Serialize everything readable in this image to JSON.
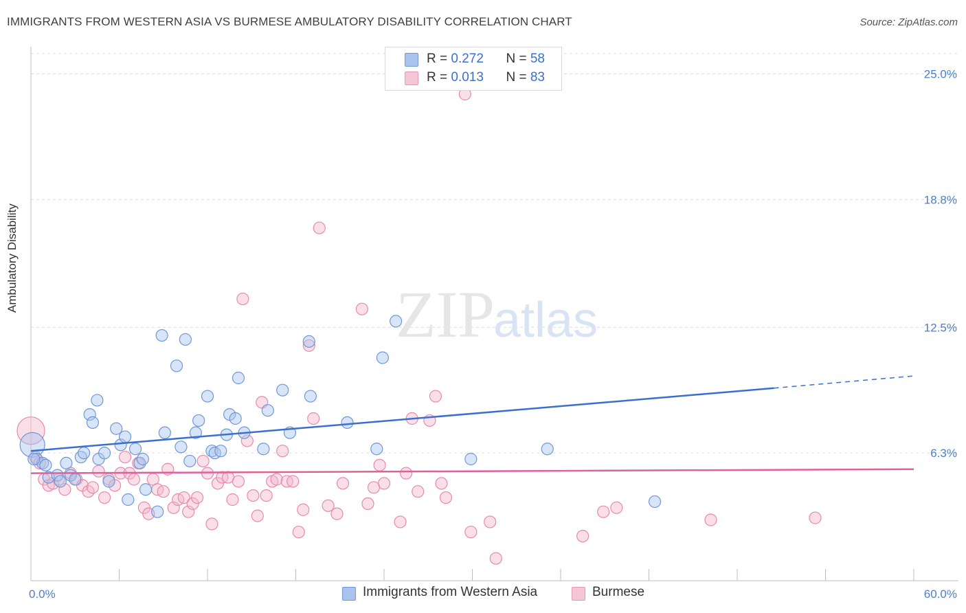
{
  "title": "IMMIGRANTS FROM WESTERN ASIA VS BURMESE AMBULATORY DISABILITY CORRELATION CHART",
  "source": "Source: ZipAtlas.com",
  "watermark": {
    "zip": "ZIP",
    "atlas": "atlas"
  },
  "legend": {
    "rows": [
      {
        "r_label": "R = ",
        "r_value": "0.272",
        "n_label": "N = ",
        "n_value": "58"
      },
      {
        "r_label": "R = ",
        "r_value": "0.013",
        "n_label": "N = ",
        "n_value": "83"
      }
    ]
  },
  "bottom_legend": [
    "Immigrants from Western Asia",
    "Burmese"
  ],
  "colors": {
    "blue": "#3a6fd0",
    "blue_fill": "#a9c4ee",
    "pink": "#e0609a",
    "pink_fill": "#f5b8cd",
    "grid": "#d9d9d9",
    "tick_text": "#4a7fcf"
  },
  "chart_data": {
    "type": "scatter",
    "title": "IMMIGRANTS FROM WESTERN ASIA VS BURMESE AMBULATORY DISABILITY CORRELATION CHART",
    "xlabel": "",
    "ylabel": "Ambulatory Disability",
    "xlim": [
      0,
      60
    ],
    "ylim": [
      0,
      26
    ],
    "x_tick_labels": [
      "0.0%",
      "60.0%"
    ],
    "y_ticks": [
      6.3,
      12.5,
      18.8,
      25.0
    ],
    "y_tick_labels": [
      "6.3%",
      "12.5%",
      "18.8%",
      "25.0%"
    ],
    "series": [
      {
        "name": "Immigrants from Western Asia",
        "color": "#3a6fd0",
        "trend": {
          "x0": 0,
          "y0": 6.4,
          "x1": 50.5,
          "y1": 9.5,
          "dash_x1": 60,
          "dash_y1": 10.1
        },
        "points": [
          [
            0.1,
            6.7
          ],
          [
            0.4,
            6.0
          ],
          [
            0.8,
            5.8
          ],
          [
            1.2,
            5.1
          ],
          [
            1.8,
            5.2
          ],
          [
            2.4,
            5.8
          ],
          [
            2.7,
            5.2
          ],
          [
            3.0,
            5.0
          ],
          [
            3.4,
            6.1
          ],
          [
            3.6,
            6.3
          ],
          [
            4.0,
            8.2
          ],
          [
            4.2,
            7.8
          ],
          [
            4.5,
            8.9
          ],
          [
            4.6,
            6.0
          ],
          [
            5.0,
            6.3
          ],
          [
            5.3,
            4.9
          ],
          [
            5.8,
            7.5
          ],
          [
            6.1,
            6.7
          ],
          [
            6.4,
            7.1
          ],
          [
            6.6,
            4.0
          ],
          [
            7.1,
            6.5
          ],
          [
            7.4,
            5.8
          ],
          [
            7.6,
            6.0
          ],
          [
            7.8,
            4.5
          ],
          [
            8.6,
            3.4
          ],
          [
            8.9,
            12.1
          ],
          [
            9.1,
            7.3
          ],
          [
            9.9,
            10.6
          ],
          [
            10.2,
            6.6
          ],
          [
            10.5,
            11.9
          ],
          [
            10.8,
            5.9
          ],
          [
            11.2,
            7.3
          ],
          [
            11.4,
            7.9
          ],
          [
            12.0,
            9.1
          ],
          [
            12.3,
            6.4
          ],
          [
            12.5,
            6.3
          ],
          [
            12.9,
            6.4
          ],
          [
            13.3,
            7.2
          ],
          [
            13.5,
            8.2
          ],
          [
            13.9,
            8.0
          ],
          [
            14.1,
            10.0
          ],
          [
            14.5,
            7.3
          ],
          [
            15.8,
            6.5
          ],
          [
            16.1,
            8.4
          ],
          [
            17.1,
            9.4
          ],
          [
            17.6,
            7.3
          ],
          [
            18.9,
            11.8
          ],
          [
            19.0,
            9.1
          ],
          [
            21.5,
            7.8
          ],
          [
            23.5,
            6.5
          ],
          [
            23.9,
            11.0
          ],
          [
            24.8,
            12.8
          ],
          [
            29.9,
            6.0
          ],
          [
            35.1,
            6.5
          ],
          [
            42.4,
            3.9
          ],
          [
            0.2,
            6.0
          ],
          [
            1.0,
            5.7
          ],
          [
            2.0,
            4.9
          ]
        ]
      },
      {
        "name": "Burmese",
        "color": "#e0609a",
        "trend": {
          "x0": 0,
          "y0": 5.3,
          "x1": 60,
          "y1": 5.5
        },
        "points": [
          [
            0.0,
            7.4
          ],
          [
            0.3,
            6.1
          ],
          [
            0.6,
            5.8
          ],
          [
            0.9,
            5.0
          ],
          [
            1.2,
            4.7
          ],
          [
            1.5,
            4.8
          ],
          [
            1.9,
            5.0
          ],
          [
            2.3,
            4.5
          ],
          [
            2.7,
            5.3
          ],
          [
            3.1,
            5.0
          ],
          [
            3.5,
            4.7
          ],
          [
            3.9,
            4.4
          ],
          [
            4.2,
            4.6
          ],
          [
            4.6,
            5.4
          ],
          [
            5.0,
            4.1
          ],
          [
            5.3,
            5.0
          ],
          [
            5.7,
            4.7
          ],
          [
            6.1,
            5.3
          ],
          [
            6.4,
            6.1
          ],
          [
            6.7,
            5.3
          ],
          [
            7.0,
            5.0
          ],
          [
            7.3,
            5.8
          ],
          [
            7.7,
            3.6
          ],
          [
            8.0,
            3.3
          ],
          [
            8.3,
            5.0
          ],
          [
            8.6,
            4.5
          ],
          [
            9.0,
            4.4
          ],
          [
            9.3,
            5.5
          ],
          [
            9.7,
            3.6
          ],
          [
            10.0,
            4.0
          ],
          [
            10.4,
            4.1
          ],
          [
            10.7,
            3.4
          ],
          [
            11.0,
            3.8
          ],
          [
            11.3,
            4.1
          ],
          [
            11.7,
            5.9
          ],
          [
            12.0,
            5.3
          ],
          [
            12.3,
            2.8
          ],
          [
            12.7,
            4.8
          ],
          [
            13.0,
            5.1
          ],
          [
            13.4,
            5.1
          ],
          [
            13.7,
            4.0
          ],
          [
            14.1,
            4.9
          ],
          [
            14.4,
            13.9
          ],
          [
            14.7,
            6.9
          ],
          [
            15.1,
            4.2
          ],
          [
            15.4,
            3.2
          ],
          [
            15.7,
            8.8
          ],
          [
            16.0,
            4.2
          ],
          [
            16.4,
            4.9
          ],
          [
            16.7,
            5.0
          ],
          [
            17.1,
            6.4
          ],
          [
            17.4,
            4.9
          ],
          [
            17.8,
            4.9
          ],
          [
            18.2,
            2.4
          ],
          [
            18.5,
            3.5
          ],
          [
            18.9,
            11.6
          ],
          [
            19.2,
            8.0
          ],
          [
            19.6,
            17.4
          ],
          [
            20.2,
            3.7
          ],
          [
            20.8,
            3.3
          ],
          [
            21.2,
            4.8
          ],
          [
            22.5,
            13.4
          ],
          [
            22.9,
            3.8
          ],
          [
            23.3,
            4.6
          ],
          [
            23.7,
            5.7
          ],
          [
            24.0,
            4.8
          ],
          [
            25.1,
            2.9
          ],
          [
            25.5,
            5.3
          ],
          [
            25.9,
            8.0
          ],
          [
            26.3,
            4.4
          ],
          [
            27.1,
            7.9
          ],
          [
            27.5,
            9.1
          ],
          [
            27.9,
            4.8
          ],
          [
            28.2,
            4.1
          ],
          [
            29.9,
            2.4
          ],
          [
            31.2,
            2.9
          ],
          [
            31.6,
            1.1
          ],
          [
            37.5,
            2.2
          ],
          [
            38.9,
            3.4
          ],
          [
            39.8,
            3.6
          ],
          [
            46.2,
            3.0
          ],
          [
            53.3,
            3.1
          ],
          [
            29.5,
            24.0
          ]
        ]
      }
    ]
  }
}
